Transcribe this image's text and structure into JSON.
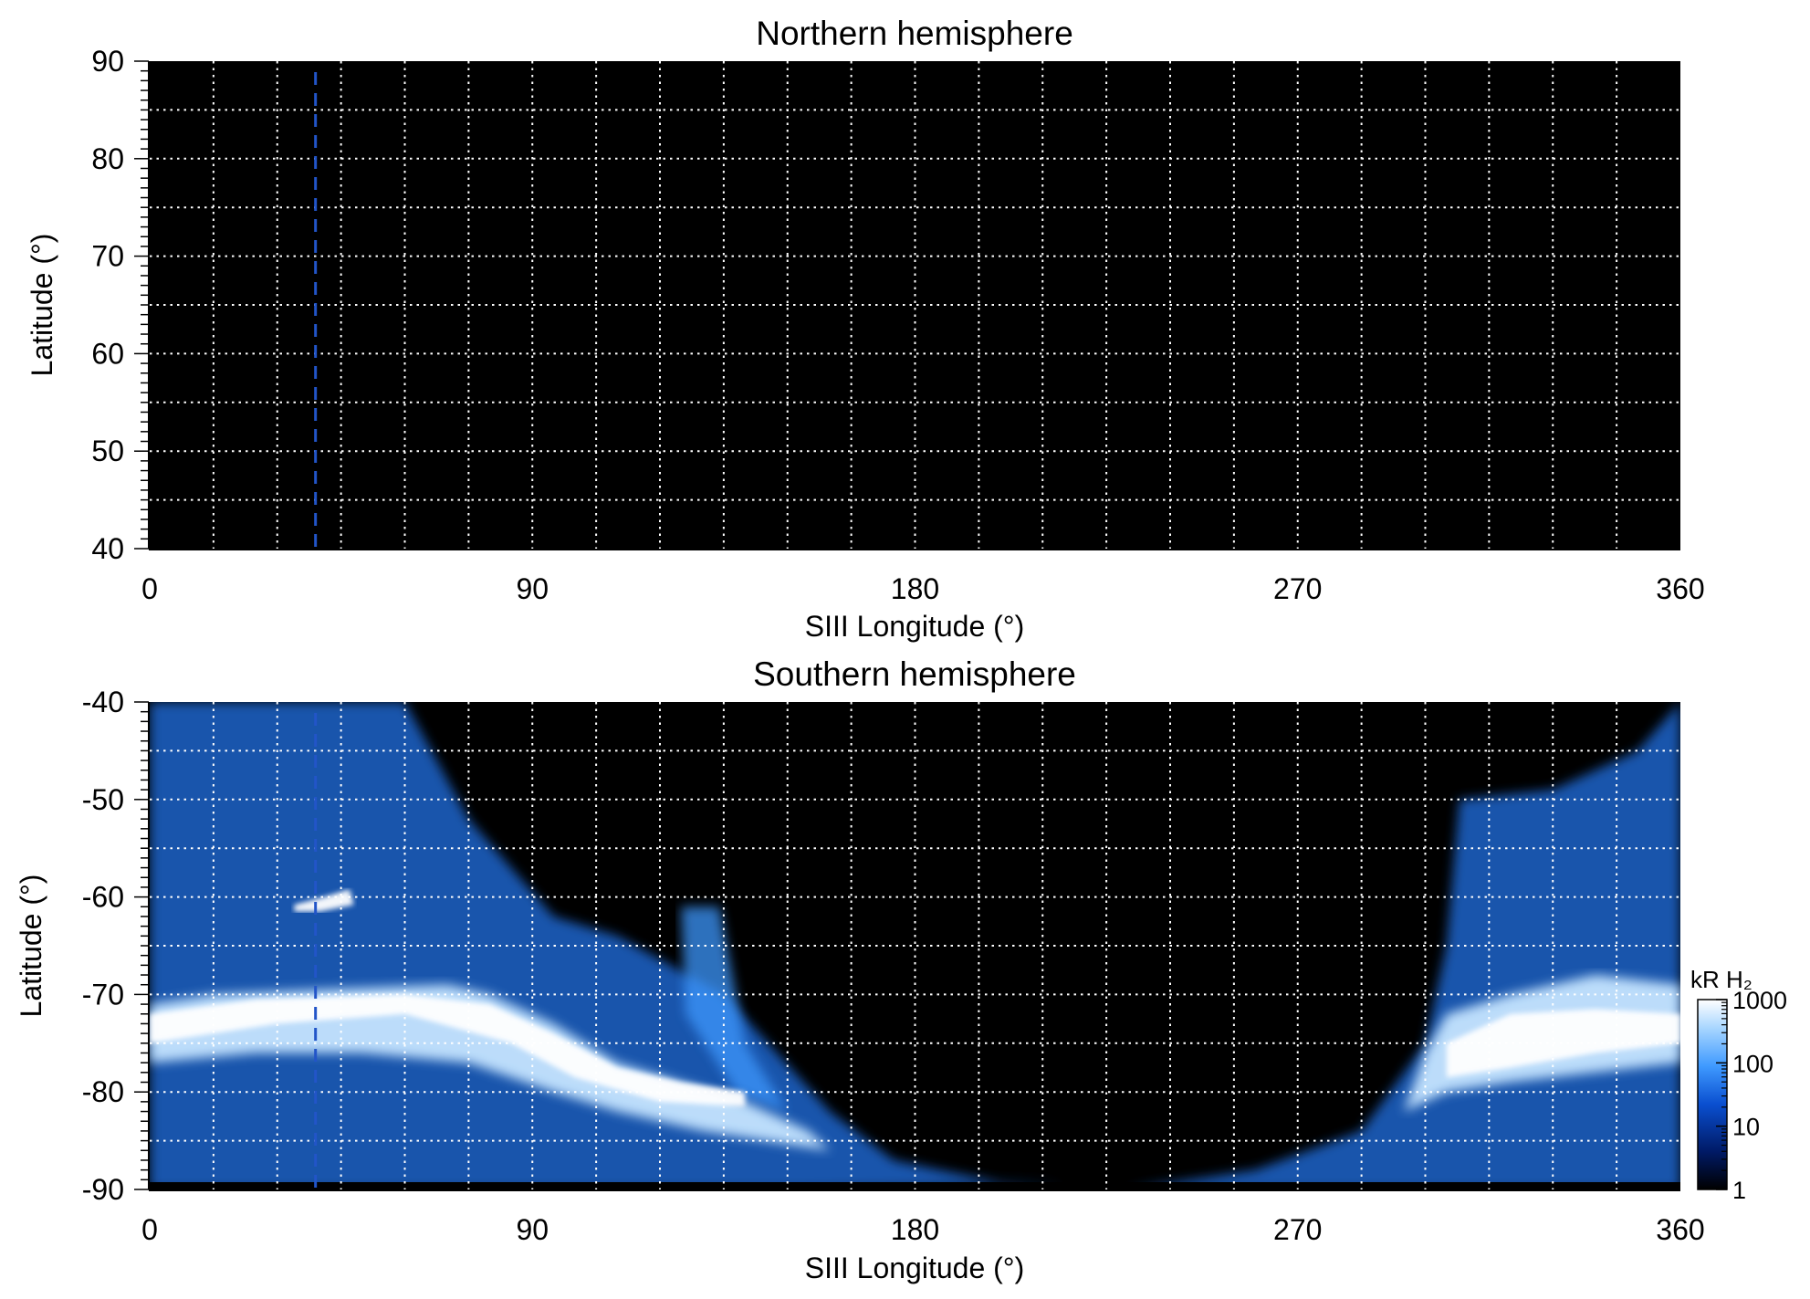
{
  "chart_data": [
    {
      "type": "heatmap",
      "title": "Northern hemisphere",
      "xlabel": "SIII Longitude (°)",
      "ylabel": "Latitude (°)",
      "xlim": [
        0,
        360
      ],
      "ylim": [
        40,
        90
      ],
      "xticks": [
        0,
        90,
        180,
        270,
        360
      ],
      "xtick_labels": [
        "0",
        "90",
        "180",
        "270",
        "360"
      ],
      "yticks": [
        40,
        50,
        60,
        70,
        80,
        90
      ],
      "ytick_labels": [
        "40",
        "50",
        "60",
        "70",
        "80",
        "90"
      ],
      "grid": true,
      "grid_x_step": 15,
      "grid_y_step": 5,
      "background": "#000000",
      "marker_line": {
        "longitude": 39,
        "color": "#2255c8",
        "style": "dashed"
      },
      "emission": []
    },
    {
      "type": "heatmap",
      "title": "Southern hemisphere",
      "xlabel": "SIII Longitude (°)",
      "ylabel": "Latitude (°)",
      "xlim": [
        0,
        360
      ],
      "ylim": [
        -90,
        -40
      ],
      "xticks": [
        0,
        90,
        180,
        270,
        360
      ],
      "xtick_labels": [
        "0",
        "90",
        "180",
        "270",
        "360"
      ],
      "yticks": [
        -90,
        -80,
        -70,
        -60,
        -50,
        -40
      ],
      "ytick_labels": [
        "-90",
        "-80",
        "-70",
        "-60",
        "-50",
        "-40"
      ],
      "grid": true,
      "grid_x_step": 15,
      "grid_y_step": 5,
      "background": "#000000",
      "marker_line": {
        "longitude": 39,
        "color": "#2255c8",
        "style": "dashed"
      },
      "emission": [
        {
          "name": "diffuse-left",
          "intensity_kR": 30,
          "points": [
            [
              0,
              -40
            ],
            [
              60,
              -40
            ],
            [
              75,
              -52
            ],
            [
              95,
              -62
            ],
            [
              110,
              -64
            ],
            [
              135,
              -70
            ],
            [
              160,
              -82
            ],
            [
              175,
              -87
            ],
            [
              200,
              -89.3
            ],
            [
              215,
              -89.5
            ],
            [
              150,
              -90
            ],
            [
              0,
              -90
            ]
          ]
        },
        {
          "name": "patch-125",
          "intensity_kR": 60,
          "points": [
            [
              125,
              -61
            ],
            [
              134,
              -61
            ],
            [
              140,
              -75
            ],
            [
              150,
              -82
            ],
            [
              138,
              -80
            ],
            [
              126,
              -72
            ]
          ]
        },
        {
          "name": "diffuse-right",
          "intensity_kR": 30,
          "points": [
            [
              308,
              -50
            ],
            [
              330,
              -49
            ],
            [
              350,
              -45
            ],
            [
              360,
              -40
            ],
            [
              360,
              -90
            ],
            [
              230,
              -90
            ],
            [
              260,
              -88
            ],
            [
              285,
              -84
            ],
            [
              300,
              -75
            ],
            [
              305,
              -65
            ]
          ]
        },
        {
          "name": "oval-left",
          "intensity_kR": 400,
          "points": [
            [
              0,
              -71
            ],
            [
              15,
              -70
            ],
            [
              40,
              -69.5
            ],
            [
              70,
              -69
            ],
            [
              80,
              -70
            ],
            [
              95,
              -73
            ],
            [
              110,
              -77
            ],
            [
              125,
              -79
            ],
            [
              140,
              -81
            ],
            [
              155,
              -84
            ],
            [
              160,
              -86
            ],
            [
              130,
              -84
            ],
            [
              110,
              -82
            ],
            [
              95,
              -80
            ],
            [
              75,
              -77
            ],
            [
              50,
              -76
            ],
            [
              25,
              -76
            ],
            [
              0,
              -77
            ]
          ]
        },
        {
          "name": "oval-right",
          "intensity_kR": 400,
          "points": [
            [
              300,
              -76
            ],
            [
              305,
              -72
            ],
            [
              320,
              -70
            ],
            [
              340,
              -68
            ],
            [
              360,
              -69
            ],
            [
              360,
              -77
            ],
            [
              340,
              -78
            ],
            [
              320,
              -79
            ],
            [
              305,
              -80
            ],
            [
              295,
              -82
            ]
          ]
        },
        {
          "name": "oval-left-core",
          "intensity_kR": 1000,
          "points": [
            [
              0,
              -72
            ],
            [
              25,
              -70.5
            ],
            [
              60,
              -70
            ],
            [
              80,
              -71
            ],
            [
              95,
              -74
            ],
            [
              110,
              -77.5
            ],
            [
              125,
              -79
            ],
            [
              140,
              -80
            ],
            [
              140,
              -81.5
            ],
            [
              120,
              -81
            ],
            [
              100,
              -78.5
            ],
            [
              85,
              -75
            ],
            [
              60,
              -72
            ],
            [
              30,
              -73
            ],
            [
              0,
              -75
            ]
          ]
        },
        {
          "name": "oval-right-core",
          "intensity_kR": 1000,
          "points": [
            [
              305,
              -75
            ],
            [
              320,
              -72
            ],
            [
              340,
              -71.5
            ],
            [
              360,
              -72
            ],
            [
              360,
              -75
            ],
            [
              340,
              -76
            ],
            [
              320,
              -77.5
            ],
            [
              305,
              -78.5
            ]
          ]
        },
        {
          "name": "spot-45",
          "intensity_kR": 1000,
          "points": [
            [
              34,
              -60.8
            ],
            [
              41,
              -60
            ],
            [
              47,
              -59.2
            ],
            [
              48,
              -60.8
            ],
            [
              40,
              -61.5
            ],
            [
              34,
              -61.5
            ]
          ]
        }
      ],
      "colorbar": {
        "label": "kR H₂",
        "scale": "log",
        "range": [
          1,
          1000
        ],
        "ticks": [
          1,
          10,
          100,
          1000
        ],
        "tick_labels": [
          "1",
          "10",
          "100",
          "1000"
        ],
        "colors": [
          "#000000",
          "#001a66",
          "#0a4fd0",
          "#3f9aff",
          "#a8d6ff",
          "#ffffff"
        ]
      }
    }
  ]
}
